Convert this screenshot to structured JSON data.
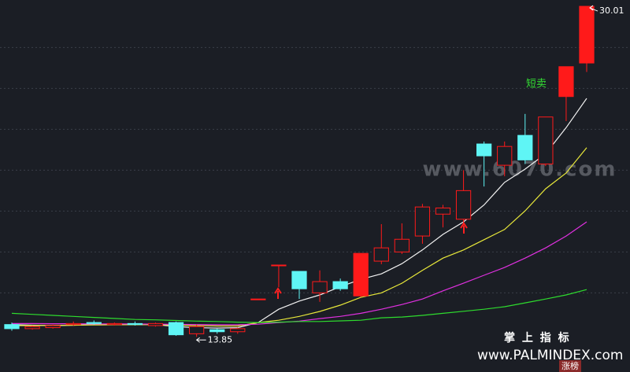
{
  "chart_data": {
    "type": "candlestick",
    "up_color": "#ff1a1a",
    "down_color": "#5ff5f5",
    "limit_ratio": 1.095,
    "ylim": [
      12.13,
      30.32
    ],
    "grid_levels": [
      16,
      18,
      20,
      22,
      24,
      26,
      28
    ],
    "open": [
      14.45,
      14.25,
      14.3,
      14.45,
      14.55,
      14.45,
      14.5,
      14.4,
      14.55,
      14.0,
      14.2,
      14.1,
      15.66,
      17.36,
      17.05,
      16.0,
      16.55,
      15.85,
      17.55,
      18.0,
      18.78,
      19.85,
      19.6,
      23.28,
      22.24,
      23.7,
      22.3,
      25.6,
      27.24
    ],
    "high": [
      14.55,
      14.4,
      14.45,
      14.6,
      14.65,
      14.55,
      14.6,
      14.55,
      14.6,
      14.45,
      14.25,
      14.3,
      15.7,
      17.36,
      17.05,
      17.1,
      16.7,
      17.93,
      19.36,
      19.4,
      20.35,
      20.3,
      22.0,
      23.4,
      23.4,
      24.75,
      24.6,
      27.06,
      30.01
    ],
    "low": [
      14.15,
      14.2,
      14.25,
      14.4,
      14.45,
      14.4,
      14.4,
      14.35,
      13.9,
      13.85,
      14.0,
      14.0,
      15.66,
      16.28,
      15.7,
      15.56,
      16.1,
      15.8,
      17.4,
      17.9,
      18.4,
      19.2,
      19.3,
      21.2,
      21.7,
      22.3,
      22.2,
      24.4,
      26.8
    ],
    "close": [
      14.25,
      14.35,
      14.4,
      14.5,
      14.5,
      14.5,
      14.45,
      14.5,
      13.95,
      14.35,
      14.1,
      14.25,
      15.7,
      17.36,
      16.2,
      16.55,
      16.2,
      17.93,
      18.2,
      18.62,
      20.2,
      20.15,
      21.0,
      22.7,
      23.16,
      22.5,
      24.6,
      27.06,
      30.01
    ],
    "series": [
      {
        "color": "#f2f2f2",
        "values": [
          14.45,
          14.42,
          14.4,
          14.42,
          14.45,
          14.46,
          14.45,
          14.45,
          14.35,
          14.3,
          14.28,
          14.3,
          14.55,
          15.2,
          15.6,
          15.9,
          16.3,
          16.66,
          16.93,
          17.43,
          18.1,
          18.86,
          19.47,
          20.3,
          21.4,
          22.05,
          22.8,
          24.08,
          25.51
        ]
      },
      {
        "color": "#e8e83a",
        "values": [
          14.4,
          14.4,
          14.41,
          14.42,
          14.43,
          14.44,
          14.44,
          14.45,
          14.42,
          14.4,
          14.38,
          14.38,
          14.55,
          14.66,
          14.85,
          15.09,
          15.4,
          15.78,
          16.0,
          16.47,
          17.1,
          17.7,
          18.1,
          18.6,
          19.1,
          20.01,
          21.09,
          21.86,
          23.1
        ]
      },
      {
        "color": "#e030e0",
        "values": [
          14.5,
          14.5,
          14.49,
          14.49,
          14.48,
          14.48,
          14.48,
          14.47,
          14.46,
          14.45,
          14.44,
          14.44,
          14.47,
          14.55,
          14.62,
          14.74,
          14.85,
          15.0,
          15.2,
          15.43,
          15.7,
          16.1,
          16.47,
          16.86,
          17.24,
          17.7,
          18.2,
          18.78,
          19.47
        ]
      },
      {
        "color": "#2edc2e",
        "values": [
          15.0,
          14.95,
          14.9,
          14.85,
          14.8,
          14.75,
          14.7,
          14.68,
          14.65,
          14.62,
          14.6,
          14.57,
          14.55,
          14.57,
          14.6,
          14.6,
          14.63,
          14.66,
          14.78,
          14.82,
          14.9,
          15.0,
          15.1,
          15.2,
          15.32,
          15.51,
          15.7,
          15.9,
          16.16
        ]
      }
    ],
    "high_label": "30.01",
    "low_label": "13.85",
    "annotation": "短卖",
    "watermark": "www.6070.com",
    "brand_title": "掌 上 指 标",
    "brand_url": "www.PALMINDEX.com",
    "badge": "涨榜"
  }
}
